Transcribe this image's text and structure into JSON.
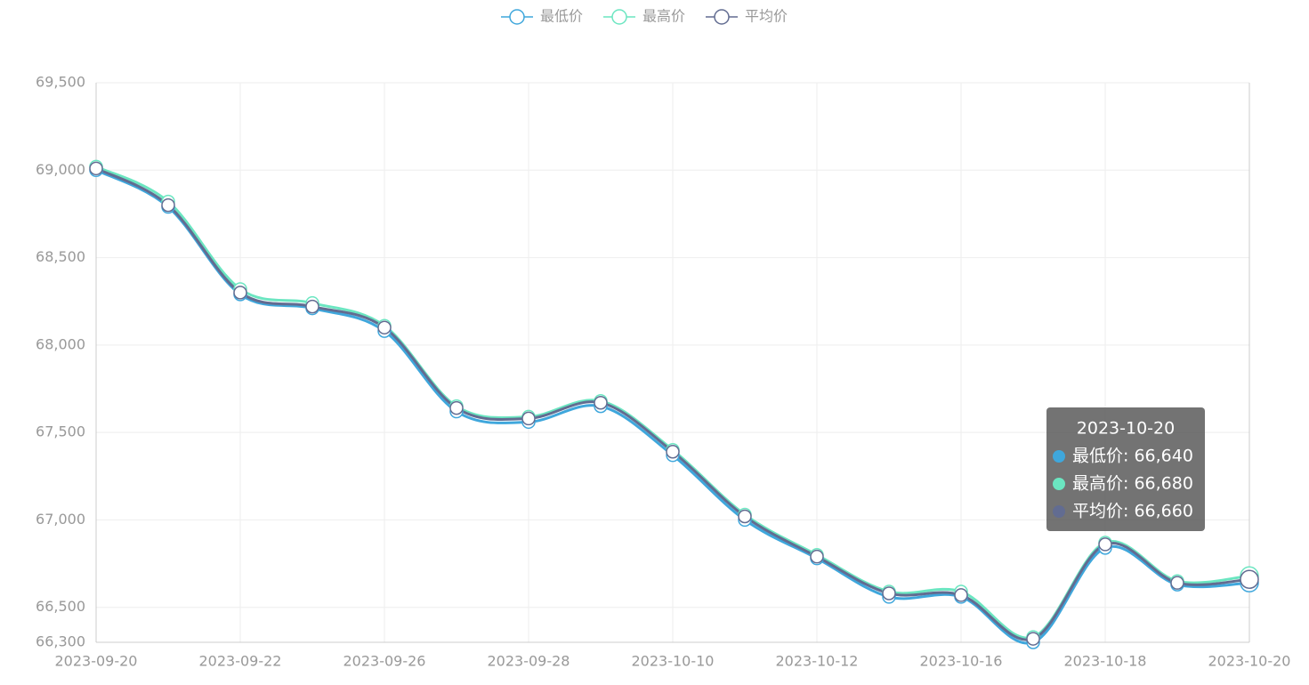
{
  "chart_data": {
    "type": "line",
    "categories": [
      "2023-09-20",
      null,
      "2023-09-22",
      null,
      "2023-09-26",
      null,
      "2023-09-28",
      null,
      "2023-10-10",
      null,
      "2023-10-12",
      null,
      "2023-10-16",
      null,
      "2023-10-18",
      null,
      "2023-10-20"
    ],
    "series": [
      {
        "name": "最低价",
        "color": "#3fa7dc",
        "values": [
          69000,
          68790,
          68290,
          68210,
          68080,
          67620,
          67560,
          67650,
          67370,
          67000,
          66780,
          66560,
          66560,
          66300,
          66840,
          66630,
          66640
        ]
      },
      {
        "name": "最高价",
        "color": "#6be6c1",
        "values": [
          69020,
          68820,
          68320,
          68240,
          68110,
          67650,
          67590,
          67680,
          67400,
          67030,
          66800,
          66590,
          66590,
          66330,
          66870,
          66650,
          66680
        ]
      },
      {
        "name": "平均价",
        "color": "#626c91",
        "values": [
          69010,
          68800,
          68300,
          68220,
          68100,
          67640,
          67580,
          67670,
          67390,
          67020,
          66790,
          66580,
          66570,
          66320,
          66860,
          66640,
          66660
        ]
      }
    ],
    "ylim": [
      66300,
      69500
    ],
    "yticks": [
      {
        "value": 66300,
        "label": "66,300"
      },
      {
        "value": 66500,
        "label": "66,500"
      },
      {
        "value": 67000,
        "label": "67,000"
      },
      {
        "value": 67500,
        "label": "67,500"
      },
      {
        "value": 68000,
        "label": "68,000"
      },
      {
        "value": 68500,
        "label": "68,500"
      },
      {
        "value": 69000,
        "label": "69,000"
      },
      {
        "value": 69500,
        "label": "69,500"
      }
    ],
    "grid": true,
    "legend": "top",
    "tooltip": {
      "title": "2023-10-20",
      "lines": [
        "最低价: 66,640",
        "最高价: 66,680",
        "平均价: 66,660"
      ]
    }
  }
}
